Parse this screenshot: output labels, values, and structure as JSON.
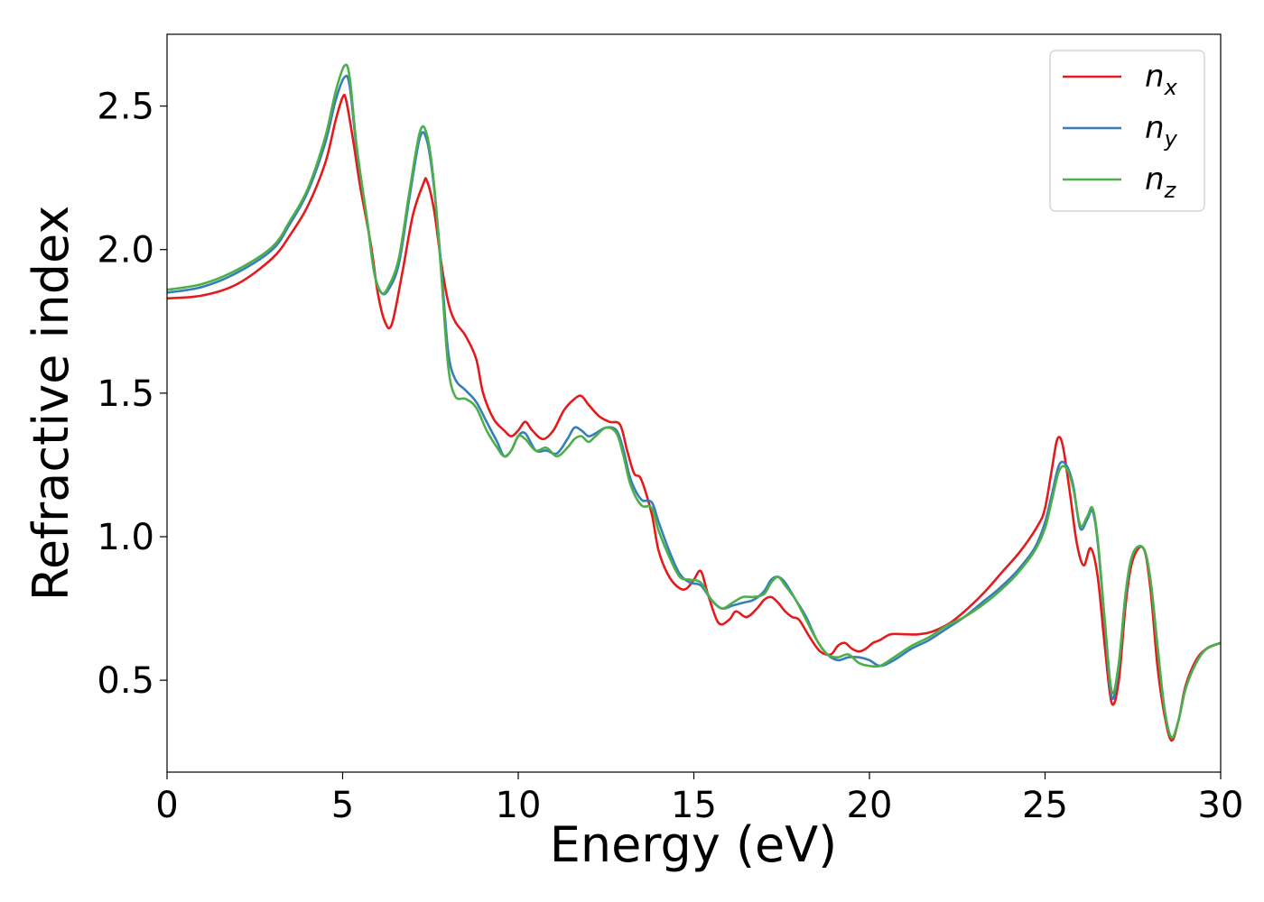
{
  "chart_data": {
    "type": "line",
    "xlabel": "Energy (eV)",
    "ylabel": "Refractive index",
    "xlim": [
      0,
      30
    ],
    "ylim": [
      0.18,
      2.75
    ],
    "xticks": [
      "0",
      "5",
      "10",
      "15",
      "20",
      "25",
      "30"
    ],
    "yticks": [
      "0.5",
      "1.0",
      "1.5",
      "2.0",
      "2.5"
    ],
    "grid": false,
    "legend_position": "top-right",
    "series": [
      {
        "name": "n",
        "subscript": "x",
        "color": "#e41a1c",
        "x": [
          0,
          1,
          2,
          3,
          3.5,
          4,
          4.5,
          4.8,
          5.0,
          5.1,
          5.3,
          5.5,
          5.8,
          6.0,
          6.2,
          6.4,
          6.7,
          7.0,
          7.3,
          7.4,
          7.6,
          7.8,
          8.0,
          8.2,
          8.5,
          8.8,
          9.0,
          9.3,
          9.6,
          9.8,
          10.0,
          10.2,
          10.4,
          10.7,
          11.0,
          11.3,
          11.6,
          11.8,
          12.0,
          12.3,
          12.6,
          12.9,
          13.1,
          13.3,
          13.5,
          13.8,
          14.0,
          14.3,
          14.6,
          14.8,
          15.0,
          15.2,
          15.4,
          15.7,
          16.0,
          16.2,
          16.5,
          16.8,
          17.0,
          17.2,
          17.4,
          17.6,
          17.8,
          18.0,
          18.3,
          18.6,
          18.9,
          19.1,
          19.3,
          19.5,
          19.7,
          19.9,
          20.1,
          20.3,
          20.6,
          21.0,
          21.4,
          21.8,
          22.3,
          22.8,
          23.3,
          23.8,
          24.3,
          24.8,
          25.0,
          25.2,
          25.35,
          25.5,
          25.7,
          25.9,
          26.1,
          26.3,
          26.5,
          26.7,
          26.9,
          27.1,
          27.3,
          27.5,
          27.8,
          28.0,
          28.2,
          28.4,
          28.6,
          28.8,
          29.0,
          29.3,
          29.6,
          30.0
        ],
        "y": [
          1.83,
          1.84,
          1.88,
          1.97,
          2.05,
          2.15,
          2.3,
          2.45,
          2.53,
          2.52,
          2.38,
          2.22,
          2.02,
          1.85,
          1.75,
          1.74,
          1.92,
          2.12,
          2.23,
          2.24,
          2.14,
          1.96,
          1.82,
          1.75,
          1.7,
          1.62,
          1.5,
          1.41,
          1.37,
          1.35,
          1.37,
          1.4,
          1.37,
          1.34,
          1.37,
          1.44,
          1.48,
          1.49,
          1.46,
          1.42,
          1.4,
          1.39,
          1.3,
          1.22,
          1.2,
          1.08,
          0.95,
          0.86,
          0.82,
          0.82,
          0.85,
          0.88,
          0.8,
          0.7,
          0.71,
          0.74,
          0.72,
          0.75,
          0.78,
          0.79,
          0.77,
          0.74,
          0.72,
          0.71,
          0.65,
          0.6,
          0.59,
          0.62,
          0.63,
          0.61,
          0.6,
          0.61,
          0.63,
          0.64,
          0.66,
          0.66,
          0.66,
          0.67,
          0.7,
          0.75,
          0.81,
          0.88,
          0.95,
          1.04,
          1.1,
          1.24,
          1.34,
          1.32,
          1.16,
          0.98,
          0.9,
          0.96,
          0.86,
          0.62,
          0.42,
          0.5,
          0.77,
          0.92,
          0.96,
          0.82,
          0.55,
          0.38,
          0.29,
          0.36,
          0.48,
          0.57,
          0.61,
          0.63
        ]
      },
      {
        "name": "n",
        "subscript": "y",
        "color": "#377eb8",
        "x": [
          0,
          1,
          2,
          3,
          3.5,
          4,
          4.5,
          4.8,
          5.05,
          5.2,
          5.4,
          5.7,
          5.9,
          6.1,
          6.3,
          6.6,
          6.9,
          7.2,
          7.4,
          7.6,
          7.8,
          8.0,
          8.2,
          8.5,
          8.8,
          9.1,
          9.4,
          9.6,
          9.8,
          10.0,
          10.2,
          10.5,
          10.8,
          11.1,
          11.4,
          11.6,
          11.8,
          12.0,
          12.2,
          12.5,
          12.8,
          13.0,
          13.2,
          13.5,
          13.8,
          14.0,
          14.3,
          14.6,
          14.9,
          15.2,
          15.5,
          15.8,
          16.1,
          16.4,
          16.7,
          17.0,
          17.2,
          17.4,
          17.6,
          17.9,
          18.2,
          18.5,
          18.8,
          19.1,
          19.4,
          19.7,
          20.0,
          20.3,
          20.7,
          21.2,
          21.7,
          22.2,
          22.7,
          23.2,
          23.7,
          24.2,
          24.7,
          25.0,
          25.2,
          25.4,
          25.6,
          25.8,
          26.0,
          26.2,
          26.35,
          26.5,
          26.7,
          26.9,
          27.1,
          27.3,
          27.5,
          27.8,
          28.0,
          28.2,
          28.4,
          28.6,
          28.8,
          29.0,
          29.3,
          29.6,
          30.0
        ],
        "y": [
          1.85,
          1.87,
          1.92,
          2.0,
          2.09,
          2.2,
          2.37,
          2.52,
          2.6,
          2.57,
          2.35,
          2.1,
          1.92,
          1.85,
          1.86,
          1.95,
          2.18,
          2.39,
          2.38,
          2.22,
          1.95,
          1.65,
          1.55,
          1.51,
          1.47,
          1.4,
          1.33,
          1.28,
          1.3,
          1.35,
          1.36,
          1.3,
          1.3,
          1.29,
          1.34,
          1.38,
          1.37,
          1.35,
          1.36,
          1.38,
          1.37,
          1.3,
          1.2,
          1.13,
          1.12,
          1.05,
          0.95,
          0.87,
          0.84,
          0.83,
          0.78,
          0.75,
          0.76,
          0.77,
          0.78,
          0.81,
          0.85,
          0.86,
          0.84,
          0.78,
          0.72,
          0.64,
          0.59,
          0.57,
          0.58,
          0.58,
          0.57,
          0.55,
          0.57,
          0.61,
          0.64,
          0.68,
          0.72,
          0.77,
          0.82,
          0.88,
          0.96,
          1.05,
          1.15,
          1.25,
          1.25,
          1.18,
          1.03,
          1.06,
          1.09,
          0.98,
          0.7,
          0.44,
          0.55,
          0.8,
          0.94,
          0.96,
          0.85,
          0.62,
          0.4,
          0.3,
          0.36,
          0.47,
          0.56,
          0.61,
          0.63
        ]
      },
      {
        "name": "n",
        "subscript": "z",
        "color": "#4daf4a",
        "x": [
          0,
          1,
          2,
          3,
          3.5,
          4,
          4.5,
          4.8,
          5.05,
          5.2,
          5.4,
          5.7,
          5.9,
          6.1,
          6.3,
          6.6,
          6.9,
          7.2,
          7.4,
          7.6,
          7.8,
          8.0,
          8.2,
          8.5,
          8.8,
          9.1,
          9.4,
          9.6,
          9.8,
          10.0,
          10.2,
          10.5,
          10.8,
          11.1,
          11.4,
          11.6,
          11.8,
          12.0,
          12.2,
          12.5,
          12.8,
          13.0,
          13.2,
          13.5,
          13.8,
          14.0,
          14.3,
          14.6,
          14.9,
          15.2,
          15.5,
          15.8,
          16.1,
          16.4,
          16.7,
          17.0,
          17.2,
          17.4,
          17.6,
          17.9,
          18.2,
          18.5,
          18.8,
          19.1,
          19.4,
          19.7,
          20.0,
          20.3,
          20.7,
          21.2,
          21.7,
          22.2,
          22.7,
          23.2,
          23.7,
          24.2,
          24.7,
          25.0,
          25.2,
          25.4,
          25.6,
          25.8,
          26.0,
          26.2,
          26.35,
          26.5,
          26.7,
          26.9,
          27.1,
          27.3,
          27.5,
          27.8,
          28.0,
          28.2,
          28.4,
          28.6,
          28.8,
          29.0,
          29.3,
          29.6,
          30.0
        ],
        "y": [
          1.86,
          1.88,
          1.93,
          2.01,
          2.1,
          2.21,
          2.39,
          2.55,
          2.64,
          2.6,
          2.36,
          2.1,
          1.92,
          1.85,
          1.87,
          1.97,
          2.2,
          2.41,
          2.4,
          2.23,
          1.93,
          1.6,
          1.49,
          1.48,
          1.45,
          1.37,
          1.31,
          1.28,
          1.3,
          1.35,
          1.34,
          1.3,
          1.31,
          1.28,
          1.31,
          1.34,
          1.35,
          1.33,
          1.35,
          1.38,
          1.36,
          1.28,
          1.18,
          1.11,
          1.1,
          1.02,
          0.93,
          0.86,
          0.85,
          0.84,
          0.78,
          0.75,
          0.77,
          0.79,
          0.79,
          0.8,
          0.84,
          0.86,
          0.83,
          0.78,
          0.71,
          0.64,
          0.59,
          0.58,
          0.59,
          0.56,
          0.55,
          0.55,
          0.58,
          0.62,
          0.65,
          0.69,
          0.72,
          0.76,
          0.81,
          0.87,
          0.95,
          1.03,
          1.13,
          1.23,
          1.24,
          1.17,
          1.04,
          1.07,
          1.1,
          0.99,
          0.71,
          0.46,
          0.56,
          0.81,
          0.94,
          0.96,
          0.85,
          0.62,
          0.4,
          0.3,
          0.36,
          0.47,
          0.56,
          0.61,
          0.63
        ]
      }
    ]
  }
}
